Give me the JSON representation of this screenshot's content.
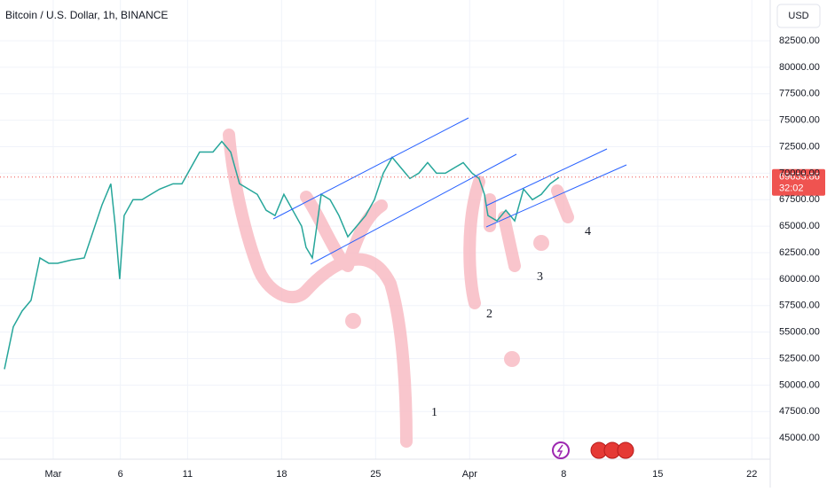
{
  "chart_data": {
    "type": "line",
    "title": "Bitcoin / U.S. Dollar, 1h, BINANCE",
    "currency": "USD",
    "last_price": {
      "value": 69633.86,
      "label": "69633.86"
    },
    "countdown": "32:02",
    "annotations": [
      "1",
      "2",
      "3",
      "4"
    ],
    "color": "#26a69a",
    "grid": true,
    "xlim": [
      -2.96,
      54.37
    ],
    "ylim": [
      43000,
      86350
    ],
    "xticks": [
      {
        "value": 1,
        "label": "Mar"
      },
      6,
      11,
      18,
      25,
      {
        "value": 32,
        "label": "Apr"
      },
      {
        "value": 39,
        "label": "8"
      },
      {
        "value": 46,
        "label": "15"
      },
      {
        "value": 53,
        "label": "22"
      }
    ],
    "yticks": [
      {
        "value": 45000,
        "label": "45000.00"
      },
      {
        "value": 47500,
        "label": "47500.00"
      },
      {
        "value": 50000,
        "label": "50000.00"
      },
      {
        "value": 52500,
        "label": "52500.00"
      },
      {
        "value": 55000,
        "label": "55000.00"
      },
      {
        "value": 57500,
        "label": "57500.00"
      },
      {
        "value": 60000,
        "label": "60000.00"
      },
      {
        "value": 62500,
        "label": "62500.00"
      },
      {
        "value": 65000,
        "label": "65000.00"
      },
      {
        "value": 67500,
        "label": "67500.00"
      },
      {
        "value": 70000,
        "label": "70000.00"
      },
      {
        "value": 72500,
        "label": "72500.00"
      },
      {
        "value": 75000,
        "label": "75000.00"
      },
      {
        "value": 77500,
        "label": "77500.00"
      },
      {
        "value": 80000,
        "label": "80000.00"
      },
      {
        "value": 82500,
        "label": "82500.00"
      }
    ],
    "x": [
      -2.63,
      -1.97,
      -1.31,
      -0.65,
      0.01,
      0.67,
      1.33,
      2.32,
      3.31,
      3.97,
      4.63,
      5.29,
      5.62,
      5.95,
      6.28,
      6.94,
      7.61,
      8.27,
      8.93,
      9.92,
      10.58,
      11.24,
      11.9,
      12.89,
      13.55,
      14.21,
      14.87,
      15.53,
      16.19,
      16.85,
      17.51,
      18.17,
      18.83,
      19.49,
      19.82,
      20.29,
      20.95,
      21.61,
      22.27,
      22.93,
      23.59,
      24.25,
      24.91,
      25.57,
      26.23,
      26.89,
      27.55,
      28.21,
      28.87,
      29.53,
      30.19,
      30.85,
      31.52,
      32.18,
      32.7,
      33.1,
      33.36,
      34.03,
      34.69,
      35.35,
      36.01,
      36.67,
      37.33,
      37.99,
      38.65
    ],
    "values": [
      51500,
      55500,
      57000,
      58000,
      62000,
      61500,
      61500,
      61800,
      62000,
      64500,
      67000,
      69000,
      65000,
      60000,
      66000,
      67500,
      67500,
      68000,
      68500,
      69000,
      69000,
      70500,
      72000,
      72000,
      73000,
      72000,
      69000,
      68500,
      68000,
      66500,
      66000,
      68000,
      66500,
      65000,
      63000,
      62000,
      68000,
      67500,
      66000,
      64000,
      65000,
      66000,
      67500,
      70000,
      71500,
      70500,
      69500,
      70000,
      71000,
      70000,
      70000,
      70500,
      71000,
      70000,
      69500,
      68000,
      66000,
      65500,
      66500,
      65500,
      68500,
      67500,
      68000,
      69000,
      69600
    ]
  }
}
